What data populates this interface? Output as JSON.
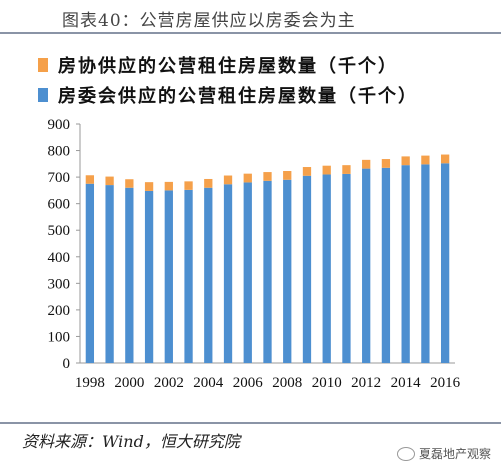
{
  "title": "图表40：公营房屋供应以房委会为主",
  "source": "资料来源：Wind，恒大研究院",
  "watermark": "夏磊地产观察",
  "colors": {
    "top_series": "#f5a04a",
    "bottom_series": "#4d8fd0",
    "axis": "#999999"
  },
  "chart_data": {
    "type": "bar",
    "stacked": true,
    "categories": [
      "1998",
      "1999",
      "2000",
      "2001",
      "2002",
      "2003",
      "2004",
      "2005",
      "2006",
      "2007",
      "2008",
      "2009",
      "2010",
      "2011",
      "2012",
      "2013",
      "2014",
      "2015",
      "2016"
    ],
    "x_tick_labels": [
      "1998",
      "2000",
      "2002",
      "2004",
      "2006",
      "2008",
      "2010",
      "2012",
      "2014",
      "2016"
    ],
    "ylim": [
      0,
      900
    ],
    "yticks": [
      0,
      100,
      200,
      300,
      400,
      500,
      600,
      700,
      800,
      900
    ],
    "legend_position": "top",
    "grid": false,
    "series": [
      {
        "name": "房协供应的公营租住房屋数量（千个）",
        "color": "#f5a04a",
        "values": [
          32,
          32,
          32,
          33,
          32,
          32,
          33,
          33,
          33,
          33,
          33,
          33,
          33,
          33,
          33,
          33,
          33,
          33,
          33
        ]
      },
      {
        "name": "房委会供应的公营租住房屋数量（千个）",
        "color": "#4d8fd0",
        "values": [
          675,
          670,
          660,
          648,
          650,
          652,
          660,
          673,
          680,
          686,
          690,
          705,
          710,
          712,
          732,
          735,
          745,
          748,
          752
        ]
      }
    ]
  }
}
